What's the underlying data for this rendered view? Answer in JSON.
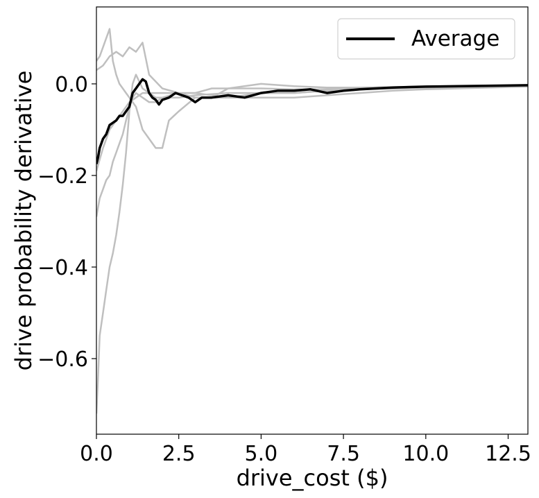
{
  "chart_data": {
    "type": "line",
    "xlabel": "drive_cost ($)",
    "ylabel": "drive probability derivative",
    "xlim": [
      0,
      13.1
    ],
    "ylim": [
      -0.765,
      0.168
    ],
    "x_ticks": [
      0.0,
      2.5,
      5.0,
      7.5,
      10.0,
      12.5
    ],
    "x_tick_labels": [
      "0.0",
      "2.5",
      "5.0",
      "7.5",
      "10.0",
      "12.5"
    ],
    "y_ticks": [
      0.0,
      -0.2,
      -0.4,
      -0.6
    ],
    "y_tick_labels": [
      "0.0",
      "−0.2",
      "−0.4",
      "−0.6"
    ],
    "grid": false,
    "legend": {
      "position": "top-right",
      "entries": [
        {
          "label": "Average",
          "color": "#000000"
        }
      ]
    },
    "colors": {
      "individual": "#bfbfbf",
      "average": "#000000"
    },
    "series": [
      {
        "role": "individual",
        "x": [
          0.0,
          0.05,
          0.1,
          0.2,
          0.3,
          0.4,
          0.5,
          0.6,
          0.7,
          0.8,
          0.9,
          1.0,
          1.1,
          1.2,
          1.4,
          1.6,
          1.8,
          2.0,
          2.5,
          3.0,
          4.0,
          5.0,
          6.0,
          7.0,
          8.0,
          9.0,
          10.0,
          11.0,
          12.0,
          13.1
        ],
        "y": [
          -0.72,
          -0.64,
          -0.55,
          -0.5,
          -0.45,
          -0.4,
          -0.37,
          -0.33,
          -0.28,
          -0.22,
          -0.15,
          -0.06,
          0.0,
          0.02,
          -0.01,
          -0.02,
          -0.03,
          -0.03,
          -0.02,
          -0.03,
          -0.03,
          -0.02,
          -0.02,
          -0.015,
          -0.012,
          -0.01,
          -0.008,
          -0.006,
          -0.004,
          -0.003
        ]
      },
      {
        "role": "individual",
        "x": [
          0.0,
          0.1,
          0.2,
          0.3,
          0.4,
          0.5,
          0.6,
          0.7,
          0.8,
          0.9,
          1.0,
          1.1,
          1.2,
          1.4,
          1.6,
          1.8,
          2.0,
          2.5,
          3.0,
          4.0,
          5.0,
          6.0,
          7.0,
          8.0,
          9.0,
          10.0,
          11.0,
          12.0,
          13.1
        ],
        "y": [
          -0.29,
          -0.25,
          -0.23,
          -0.21,
          -0.2,
          -0.17,
          -0.15,
          -0.13,
          -0.11,
          -0.08,
          -0.05,
          -0.03,
          -0.02,
          -0.03,
          -0.04,
          -0.04,
          -0.03,
          -0.03,
          -0.025,
          -0.02,
          -0.02,
          -0.02,
          -0.015,
          -0.01,
          -0.01,
          -0.008,
          -0.006,
          -0.005,
          -0.004
        ]
      },
      {
        "role": "individual",
        "x": [
          0.0,
          0.1,
          0.2,
          0.3,
          0.4,
          0.5,
          0.6,
          0.7,
          0.8,
          0.9,
          1.0,
          1.2,
          1.4,
          1.6,
          1.8,
          2.0,
          2.2,
          2.5,
          3.0,
          3.5,
          4.0,
          5.0,
          6.0,
          7.0,
          8.0,
          9.0,
          10.0,
          11.0,
          12.0,
          13.1
        ],
        "y": [
          0.05,
          0.06,
          0.08,
          0.1,
          0.12,
          0.05,
          0.02,
          0.0,
          -0.01,
          -0.02,
          -0.03,
          -0.05,
          -0.1,
          -0.12,
          -0.14,
          -0.14,
          -0.08,
          -0.06,
          -0.03,
          -0.03,
          -0.01,
          0.0,
          -0.005,
          -0.008,
          -0.008,
          -0.007,
          -0.006,
          -0.005,
          -0.004,
          -0.003
        ]
      },
      {
        "role": "individual",
        "x": [
          0.0,
          0.2,
          0.4,
          0.6,
          0.8,
          1.0,
          1.2,
          1.4,
          1.6,
          2.0,
          2.5,
          3.0,
          3.5,
          4.0,
          5.0,
          6.0,
          7.0,
          8.0,
          9.0,
          10.0,
          11.0,
          12.0,
          13.1
        ],
        "y": [
          0.03,
          0.04,
          0.06,
          0.07,
          0.06,
          0.08,
          0.07,
          0.09,
          0.02,
          -0.01,
          -0.02,
          -0.02,
          -0.01,
          -0.01,
          -0.01,
          -0.012,
          -0.012,
          -0.01,
          -0.009,
          -0.008,
          -0.007,
          -0.005,
          -0.004
        ]
      },
      {
        "role": "individual",
        "x": [
          0.0,
          0.2,
          0.4,
          0.6,
          0.8,
          1.0,
          1.2,
          1.4,
          1.6,
          2.0,
          2.5,
          3.0,
          4.0,
          5.0,
          6.0,
          7.0,
          8.0,
          9.0,
          10.0,
          11.0,
          12.0,
          13.1
        ],
        "y": [
          -0.19,
          -0.14,
          -0.1,
          -0.08,
          -0.06,
          -0.04,
          -0.03,
          -0.02,
          -0.02,
          -0.02,
          -0.02,
          -0.02,
          -0.03,
          -0.03,
          -0.03,
          -0.025,
          -0.02,
          -0.015,
          -0.012,
          -0.01,
          -0.008,
          -0.006
        ]
      },
      {
        "name": "Average",
        "role": "average",
        "x": [
          0.0,
          0.05,
          0.1,
          0.15,
          0.2,
          0.3,
          0.4,
          0.5,
          0.6,
          0.7,
          0.8,
          0.9,
          1.0,
          1.1,
          1.2,
          1.3,
          1.4,
          1.5,
          1.6,
          1.7,
          1.8,
          1.9,
          2.0,
          2.2,
          2.4,
          2.6,
          2.8,
          3.0,
          3.2,
          3.5,
          4.0,
          4.5,
          5.0,
          5.5,
          6.0,
          6.5,
          7.0,
          7.5,
          8.0,
          8.5,
          9.0,
          9.5,
          10.0,
          11.0,
          12.0,
          13.1
        ],
        "y": [
          -0.175,
          -0.16,
          -0.14,
          -0.13,
          -0.12,
          -0.11,
          -0.09,
          -0.085,
          -0.08,
          -0.07,
          -0.07,
          -0.06,
          -0.05,
          -0.02,
          -0.01,
          0.0,
          0.01,
          0.005,
          -0.02,
          -0.03,
          -0.035,
          -0.045,
          -0.035,
          -0.03,
          -0.02,
          -0.025,
          -0.03,
          -0.04,
          -0.03,
          -0.03,
          -0.025,
          -0.03,
          -0.02,
          -0.015,
          -0.015,
          -0.012,
          -0.02,
          -0.015,
          -0.012,
          -0.01,
          -0.008,
          -0.007,
          -0.006,
          -0.005,
          -0.004,
          -0.003
        ]
      }
    ]
  }
}
